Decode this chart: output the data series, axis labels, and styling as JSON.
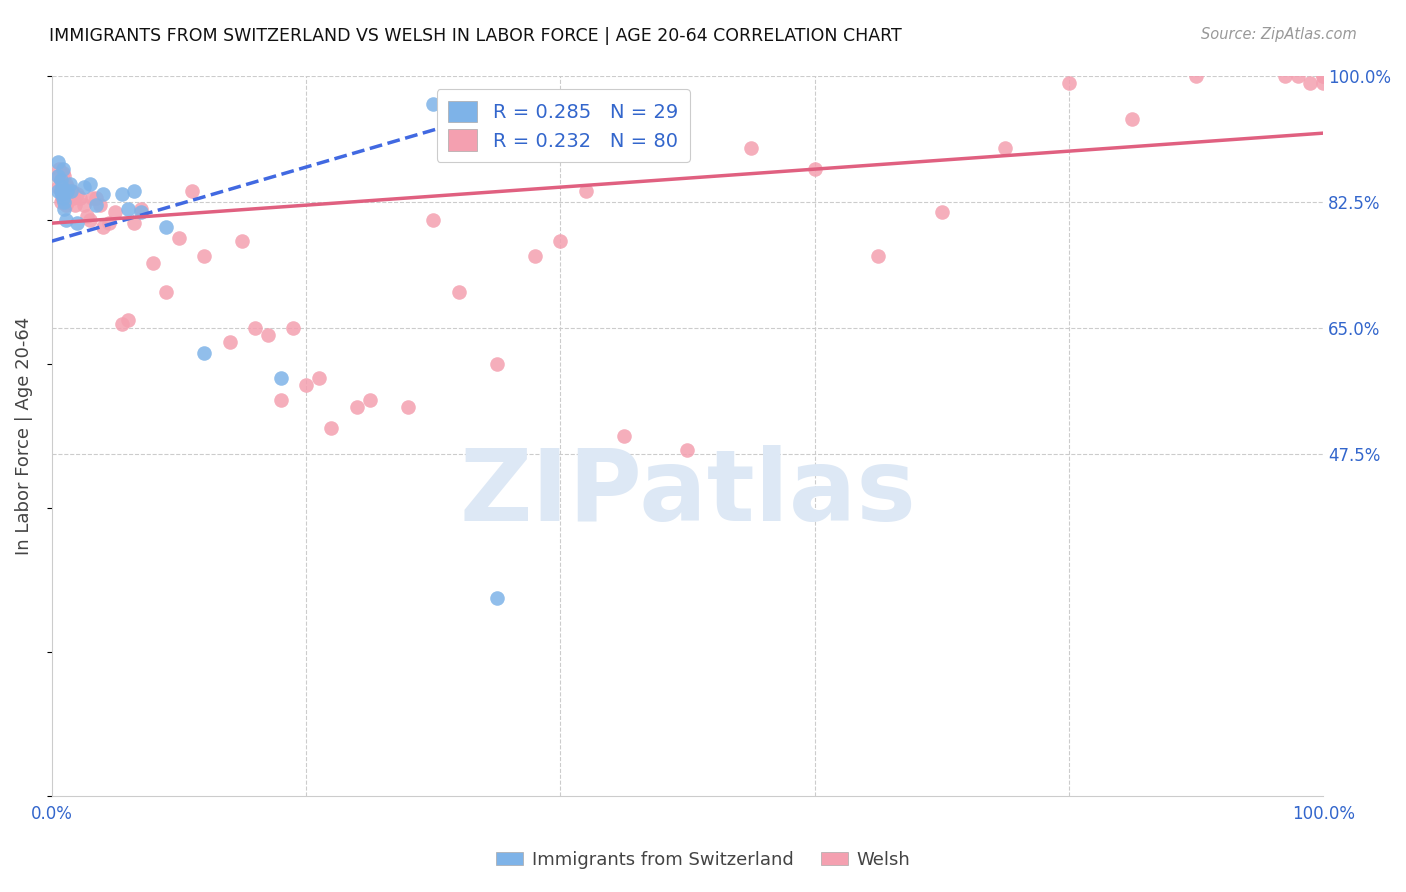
{
  "title": "IMMIGRANTS FROM SWITZERLAND VS WELSH IN LABOR FORCE | AGE 20-64 CORRELATION CHART",
  "source": "Source: ZipAtlas.com",
  "ylabel": "In Labor Force | Age 20-64",
  "xlim": [
    0.0,
    1.0
  ],
  "ylim": [
    0.0,
    1.0
  ],
  "ytick_positions": [
    0.475,
    0.65,
    0.825,
    1.0
  ],
  "ytick_labels": [
    "47.5%",
    "65.0%",
    "82.5%",
    "100.0%"
  ],
  "grid_color": "#cccccc",
  "background_color": "#ffffff",
  "swiss_color": "#7EB3E8",
  "welsh_color": "#F4A0B0",
  "swiss_line_color": "#4169E1",
  "welsh_line_color": "#E06080",
  "swiss_R": 0.285,
  "swiss_N": 29,
  "welsh_R": 0.232,
  "welsh_N": 80,
  "watermark_text": "ZIPatlas",
  "swiss_x": [
    0.005,
    0.005,
    0.005,
    0.007,
    0.007,
    0.008,
    0.008,
    0.009,
    0.009,
    0.01,
    0.01,
    0.011,
    0.012,
    0.014,
    0.015,
    0.02,
    0.025,
    0.03,
    0.035,
    0.04,
    0.055,
    0.06,
    0.065,
    0.07,
    0.09,
    0.12,
    0.18,
    0.3,
    0.35
  ],
  "swiss_y": [
    0.84,
    0.86,
    0.88,
    0.855,
    0.84,
    0.845,
    0.835,
    0.83,
    0.87,
    0.825,
    0.815,
    0.8,
    0.84,
    0.85,
    0.84,
    0.795,
    0.845,
    0.85,
    0.82,
    0.835,
    0.835,
    0.815,
    0.84,
    0.81,
    0.79,
    0.615,
    0.58,
    0.96,
    0.275
  ],
  "welsh_x": [
    0.005,
    0.005,
    0.006,
    0.007,
    0.007,
    0.007,
    0.008,
    0.008,
    0.008,
    0.009,
    0.009,
    0.01,
    0.01,
    0.01,
    0.011,
    0.011,
    0.012,
    0.012,
    0.013,
    0.014,
    0.015,
    0.016,
    0.017,
    0.018,
    0.02,
    0.022,
    0.025,
    0.028,
    0.03,
    0.032,
    0.035,
    0.038,
    0.04,
    0.045,
    0.05,
    0.055,
    0.06,
    0.065,
    0.07,
    0.08,
    0.09,
    0.1,
    0.11,
    0.12,
    0.14,
    0.16,
    0.18,
    0.2,
    0.22,
    0.25,
    0.28,
    0.3,
    0.32,
    0.35,
    0.38,
    0.4,
    0.42,
    0.45,
    0.5,
    0.55,
    0.6,
    0.65,
    0.7,
    0.75,
    0.8,
    0.85,
    0.9,
    0.92,
    0.95,
    0.97,
    0.98,
    0.99,
    1.0,
    1.0,
    1.0,
    0.15,
    0.17,
    0.19,
    0.21,
    0.24
  ],
  "welsh_y": [
    0.86,
    0.845,
    0.87,
    0.855,
    0.84,
    0.825,
    0.855,
    0.845,
    0.83,
    0.865,
    0.85,
    0.86,
    0.845,
    0.83,
    0.85,
    0.82,
    0.845,
    0.825,
    0.84,
    0.835,
    0.83,
    0.84,
    0.83,
    0.82,
    0.835,
    0.83,
    0.82,
    0.805,
    0.8,
    0.83,
    0.83,
    0.82,
    0.79,
    0.795,
    0.81,
    0.655,
    0.66,
    0.795,
    0.815,
    0.74,
    0.7,
    0.775,
    0.84,
    0.75,
    0.63,
    0.65,
    0.55,
    0.57,
    0.51,
    0.55,
    0.54,
    0.8,
    0.7,
    0.6,
    0.75,
    0.77,
    0.84,
    0.5,
    0.48,
    0.9,
    0.87,
    0.75,
    0.81,
    0.9,
    0.99,
    0.94,
    1.0,
    1.02,
    1.01,
    1.0,
    1.0,
    0.99,
    1.0,
    0.99,
    1.0,
    0.77,
    0.64,
    0.65,
    0.58,
    0.54
  ],
  "swiss_line_x": [
    0.0,
    0.35
  ],
  "swiss_line_y": [
    0.77,
    0.95
  ],
  "welsh_line_x": [
    0.0,
    1.0
  ],
  "welsh_line_y": [
    0.795,
    0.92
  ]
}
